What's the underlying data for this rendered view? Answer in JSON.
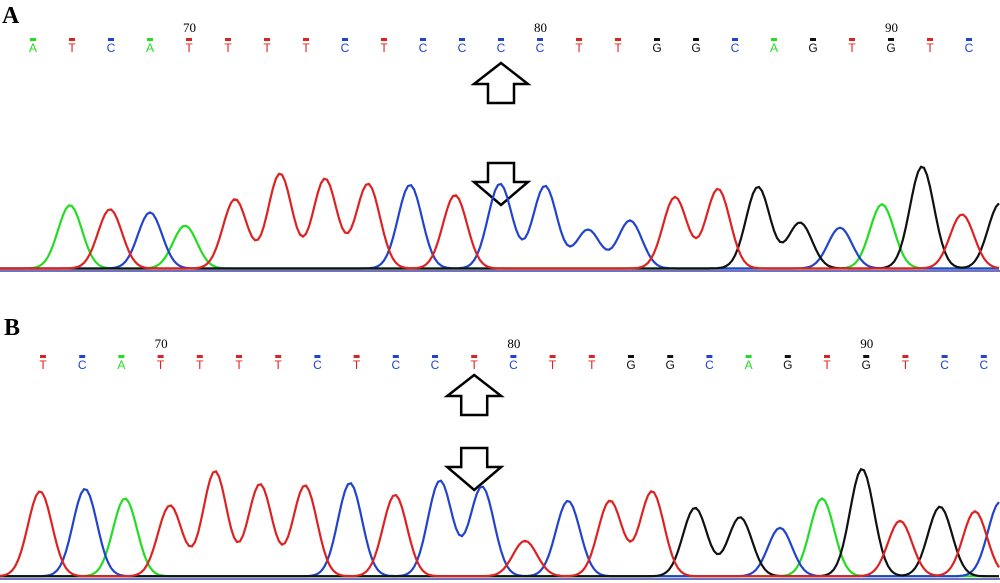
{
  "colors": {
    "A": "#22dd22",
    "C": "#2244cc",
    "G": "#111111",
    "T": "#dd2222",
    "baseline": "#4444aa"
  },
  "panels": [
    {
      "label": "A",
      "positions": [
        {
          "num": "70",
          "base_index": 4
        },
        {
          "num": "80",
          "base_index": 13
        },
        {
          "num": "90",
          "base_index": 22
        }
      ],
      "bases": [
        "A",
        "T",
        "C",
        "A",
        "T",
        "T",
        "T",
        "T",
        "C",
        "T",
        "C",
        "C",
        "C",
        "C",
        "T",
        "T",
        "G",
        "G",
        "C",
        "A",
        "G",
        "T",
        "G",
        "T",
        "C"
      ],
      "arrows": [
        {
          "icon": "up-arrow-icon",
          "base_index": 12
        },
        {
          "icon": "down-arrow-icon",
          "base_index": 12
        }
      ],
      "peaks": [
        {
          "base": "A",
          "x": 0.07,
          "h": 0.62
        },
        {
          "base": "T",
          "x": 0.11,
          "h": 0.58
        },
        {
          "base": "C",
          "x": 0.15,
          "h": 0.55
        },
        {
          "base": "A",
          "x": 0.185,
          "h": 0.42
        },
        {
          "base": "T",
          "x": 0.235,
          "h": 0.68
        },
        {
          "base": "T",
          "x": 0.28,
          "h": 0.93
        },
        {
          "base": "T",
          "x": 0.325,
          "h": 0.88
        },
        {
          "base": "T",
          "x": 0.368,
          "h": 0.83
        },
        {
          "base": "C",
          "x": 0.41,
          "h": 0.82
        },
        {
          "base": "T",
          "x": 0.455,
          "h": 0.72
        },
        {
          "base": "C",
          "x": 0.5,
          "h": 0.83
        },
        {
          "base": "C",
          "x": 0.545,
          "h": 0.81
        },
        {
          "base": "C",
          "x": 0.588,
          "h": 0.38
        },
        {
          "base": "C",
          "x": 0.63,
          "h": 0.47
        },
        {
          "base": "T",
          "x": 0.675,
          "h": 0.7
        },
        {
          "base": "T",
          "x": 0.718,
          "h": 0.78
        },
        {
          "base": "G",
          "x": 0.758,
          "h": 0.8
        },
        {
          "base": "G",
          "x": 0.8,
          "h": 0.45
        },
        {
          "base": "C",
          "x": 0.84,
          "h": 0.4
        },
        {
          "base": "A",
          "x": 0.882,
          "h": 0.63
        },
        {
          "base": "G",
          "x": 0.922,
          "h": 1.0
        },
        {
          "base": "T",
          "x": 0.962,
          "h": 0.53
        },
        {
          "base": "G",
          "x": 1.0,
          "h": 0.64
        }
      ]
    },
    {
      "label": "B",
      "positions": [
        {
          "num": "70",
          "base_index": 3
        },
        {
          "num": "80",
          "base_index": 12
        },
        {
          "num": "90",
          "base_index": 21
        }
      ],
      "bases": [
        "T",
        "C",
        "A",
        "T",
        "T",
        "T",
        "T",
        "C",
        "T",
        "C",
        "C",
        "T",
        "C",
        "T",
        "T",
        "G",
        "G",
        "C",
        "A",
        "G",
        "T",
        "G",
        "T",
        "C",
        "C"
      ],
      "arrows": [
        {
          "icon": "up-arrow-icon",
          "base_index": 11
        },
        {
          "icon": "down-arrow-icon",
          "base_index": 11
        }
      ],
      "peaks": [
        {
          "base": "T",
          "x": 0.04,
          "h": 0.72
        },
        {
          "base": "C",
          "x": 0.085,
          "h": 0.74
        },
        {
          "base": "A",
          "x": 0.125,
          "h": 0.66
        },
        {
          "base": "T",
          "x": 0.17,
          "h": 0.6
        },
        {
          "base": "T",
          "x": 0.215,
          "h": 0.89
        },
        {
          "base": "T",
          "x": 0.26,
          "h": 0.78
        },
        {
          "base": "T",
          "x": 0.305,
          "h": 0.77
        },
        {
          "base": "C",
          "x": 0.35,
          "h": 0.79
        },
        {
          "base": "T",
          "x": 0.395,
          "h": 0.69
        },
        {
          "base": "C",
          "x": 0.44,
          "h": 0.81
        },
        {
          "base": "C",
          "x": 0.482,
          "h": 0.76
        },
        {
          "base": "T",
          "x": 0.525,
          "h": 0.3
        },
        {
          "base": "C",
          "x": 0.568,
          "h": 0.64
        },
        {
          "base": "T",
          "x": 0.61,
          "h": 0.64
        },
        {
          "base": "T",
          "x": 0.652,
          "h": 0.72
        },
        {
          "base": "G",
          "x": 0.695,
          "h": 0.58
        },
        {
          "base": "G",
          "x": 0.74,
          "h": 0.5
        },
        {
          "base": "C",
          "x": 0.78,
          "h": 0.41
        },
        {
          "base": "A",
          "x": 0.822,
          "h": 0.66
        },
        {
          "base": "G",
          "x": 0.862,
          "h": 0.91
        },
        {
          "base": "T",
          "x": 0.9,
          "h": 0.47
        },
        {
          "base": "G",
          "x": 0.94,
          "h": 0.59
        },
        {
          "base": "T",
          "x": 0.975,
          "h": 0.55
        },
        {
          "base": "C",
          "x": 1.0,
          "h": 0.63
        }
      ]
    }
  ]
}
